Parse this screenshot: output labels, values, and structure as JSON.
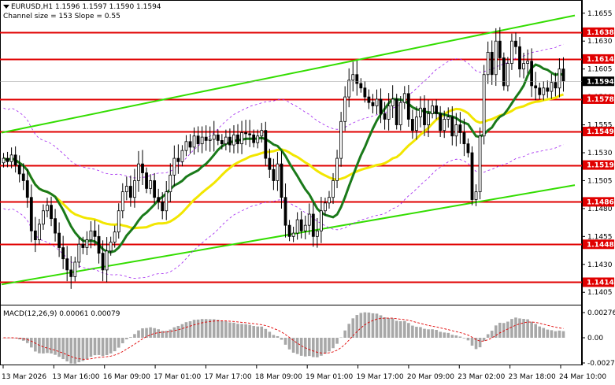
{
  "header": {
    "symbol_line": "EURUSD,H1  1.1596 1.1597 1.1590 1.1594",
    "channel_line": "Channel size = 153 Slope = 0.55"
  },
  "macd": {
    "label": "MACD(12,26,9) 0.00061 0.00079"
  },
  "colors": {
    "candle": "#000000",
    "level": "#e00000",
    "level_label_bg": "#e00000",
    "level_label_text": "#ffffff",
    "current_label_bg": "#000000",
    "channel": "#33dd00",
    "ma_fast": "#1a7a1a",
    "ma_slow": "#f2e600",
    "envelope": "#a020f0",
    "macd_hist": "#a8a8a8",
    "macd_signal": "#e00000"
  },
  "chart_data": {
    "type": "candlestick",
    "symbol": "EURUSD",
    "timeframe": "H1",
    "ohlc": {
      "open": 1.1596,
      "high": 1.1597,
      "low": 1.159,
      "close": 1.1594
    },
    "ylim": [
      1.1396,
      1.1664
    ],
    "y_ticks": [
      1.1655,
      1.163,
      1.1605,
      1.158,
      1.1555,
      1.153,
      1.1505,
      1.148,
      1.1455,
      1.143,
      1.1405
    ],
    "x_labels": [
      "13 Mar 2026",
      "13 Mar 16:00",
      "16 Mar 09:00",
      "17 Mar 01:00",
      "17 Mar 17:00",
      "18 Mar 09:00",
      "19 Mar 01:00",
      "19 Mar 17:00",
      "20 Mar 09:00",
      "23 Mar 02:00",
      "23 Mar 18:00",
      "24 Mar 10:00"
    ],
    "levels": [
      1.1638,
      1.1614,
      1.1578,
      1.1549,
      1.1519,
      1.1486,
      1.1448,
      1.1414
    ],
    "current_price": 1.1594,
    "close_series": [
      1.1525,
      1.1522,
      1.1528,
      1.1519,
      1.1511,
      1.1505,
      1.149,
      1.146,
      1.1452,
      1.1466,
      1.1478,
      1.1483,
      1.1471,
      1.1458,
      1.1445,
      1.1435,
      1.1425,
      1.1419,
      1.1432,
      1.1448,
      1.1445,
      1.1452,
      1.146,
      1.1455,
      1.144,
      1.1425,
      1.1442,
      1.145,
      1.1459,
      1.1478,
      1.1495,
      1.15,
      1.149,
      1.1505,
      1.152,
      1.1512,
      1.1498,
      1.1505,
      1.149,
      1.1486,
      1.1478,
      1.1495,
      1.151,
      1.1525,
      1.1522,
      1.1532,
      1.154,
      1.1535,
      1.1545,
      1.1538,
      1.1544,
      1.1541,
      1.1542,
      1.1546,
      1.1541,
      1.1538,
      1.1544,
      1.1537,
      1.1546,
      1.1538,
      1.1548,
      1.1547,
      1.1546,
      1.1539,
      1.1545,
      1.155,
      1.1525,
      1.1515,
      1.1505,
      1.152,
      1.149,
      1.1465,
      1.1455,
      1.1458,
      1.147,
      1.146,
      1.1465,
      1.1475,
      1.1455,
      1.146,
      1.1478,
      1.1485,
      1.149,
      1.1505,
      1.1525,
      1.1558,
      1.158,
      1.1595,
      1.16,
      1.1592,
      1.1588,
      1.158,
      1.1575,
      1.1572,
      1.1578,
      1.1565,
      1.156,
      1.1572,
      1.1578,
      1.1555,
      1.1575,
      1.1583,
      1.156,
      1.155,
      1.1562,
      1.157,
      1.1555,
      1.1565,
      1.1572,
      1.1565,
      1.155,
      1.156,
      1.1562,
      1.1545,
      1.1555,
      1.1548,
      1.1538,
      1.153,
      1.1488,
      1.1495,
      1.1545,
      1.16,
      1.162,
      1.16,
      1.163,
      1.1615,
      1.159,
      1.161,
      1.163,
      1.1625,
      1.1605,
      1.161,
      1.1612,
      1.159,
      1.1588,
      1.1582,
      1.1588,
      1.1585,
      1.1593,
      1.1588,
      1.1605,
      1.1594
    ]
  }
}
